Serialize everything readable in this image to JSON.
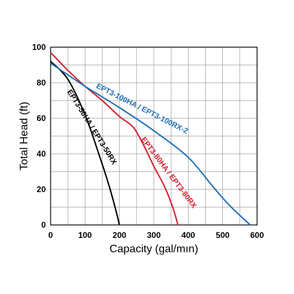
{
  "chart_data": {
    "type": "line",
    "title": "",
    "xlabel": "Capacity (gal/mın)",
    "ylabel": "Total Head (ft)",
    "xlim": [
      0,
      600
    ],
    "ylim": [
      0,
      100
    ],
    "x_ticks": [
      "0",
      "100",
      "200",
      "300",
      "400",
      "500",
      "600"
    ],
    "y_ticks": [
      "0",
      "20",
      "40",
      "60",
      "80",
      "100"
    ],
    "grid": true,
    "grid_step_x": 50,
    "grid_step_y": 10,
    "series": [
      {
        "name": "EPT3-50HA / EPT3-50RX",
        "color": "#000000",
        "points": [
          [
            0,
            92
          ],
          [
            50,
            82
          ],
          [
            100,
            62
          ],
          [
            140,
            40
          ],
          [
            170,
            22
          ],
          [
            190,
            8
          ],
          [
            200,
            0
          ]
        ]
      },
      {
        "name": "EPT3-80HA / EPT3-80RX",
        "color": "#d32030",
        "points": [
          [
            0,
            97
          ],
          [
            50,
            87
          ],
          [
            100,
            78
          ],
          [
            150,
            70
          ],
          [
            200,
            61
          ],
          [
            240,
            55
          ],
          [
            270,
            45
          ],
          [
            300,
            33
          ],
          [
            330,
            22
          ],
          [
            355,
            10
          ],
          [
            370,
            0
          ]
        ]
      },
      {
        "name": "EPT3-100HA / EPT3-100RX-2",
        "color": "#1f6fb6",
        "points": [
          [
            0,
            91
          ],
          [
            100,
            78
          ],
          [
            200,
            66
          ],
          [
            300,
            53
          ],
          [
            400,
            38
          ],
          [
            470,
            22
          ],
          [
            520,
            11
          ],
          [
            580,
            0
          ]
        ]
      }
    ]
  }
}
